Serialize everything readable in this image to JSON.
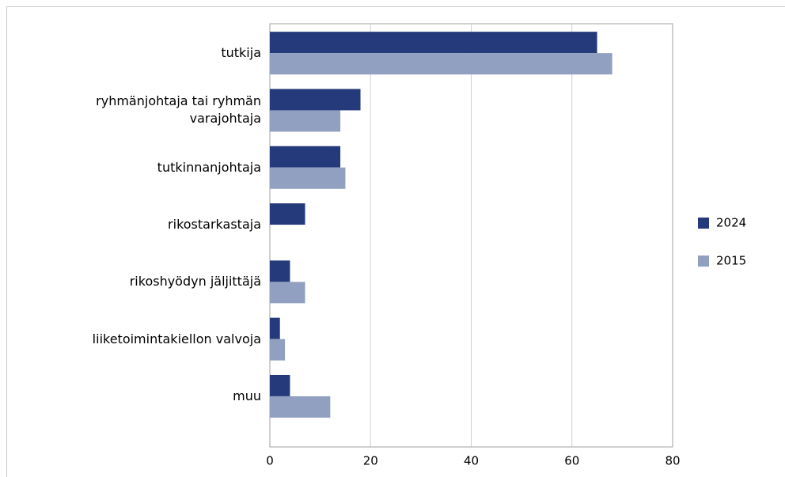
{
  "chart_data": {
    "type": "bar",
    "orientation": "horizontal",
    "categories": [
      "tutkija",
      "ryhmänjohtaja tai ryhmän varajohtaja",
      "tutkinnanjohtaja",
      "rikostarkastaja",
      "rikoshyödyn jäljittäjä",
      "liiketoimintakiellon valvoja",
      "muu"
    ],
    "series": [
      {
        "name": "2024",
        "color": "#253a7a",
        "values": [
          65,
          18,
          14,
          7,
          4,
          2,
          4
        ]
      },
      {
        "name": "2015",
        "color": "#91a0c0",
        "values": [
          68,
          14,
          15,
          null,
          7,
          3,
          12
        ]
      }
    ],
    "xlim": [
      0,
      80
    ],
    "xticks": [
      0,
      20,
      40,
      60,
      80
    ],
    "grid": true,
    "legend": "right"
  }
}
